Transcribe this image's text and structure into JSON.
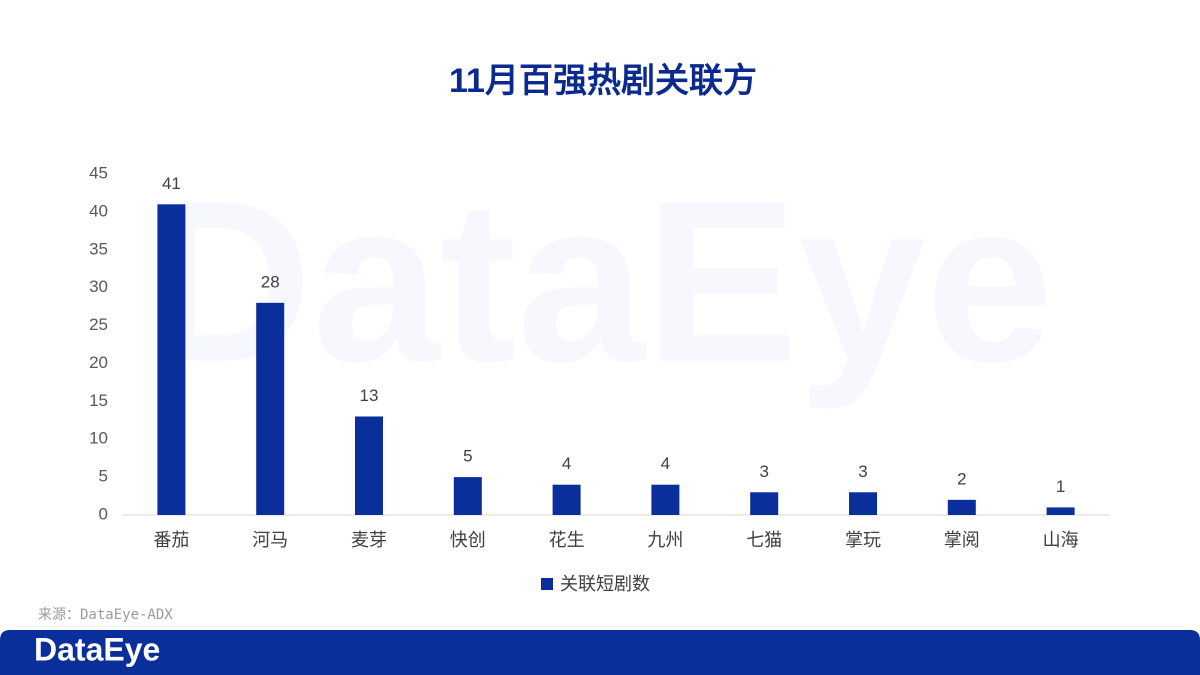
{
  "chart_data": {
    "type": "bar",
    "title": "11月百强热剧关联方",
    "categories": [
      "番茄",
      "河马",
      "麦芽",
      "快创",
      "花生",
      "九州",
      "七猫",
      "掌玩",
      "掌阅",
      "山海"
    ],
    "series": [
      {
        "name": "关联短剧数",
        "color": "#0a2f9b",
        "values": [
          41,
          28,
          13,
          5,
          4,
          4,
          3,
          3,
          2,
          1
        ]
      }
    ],
    "ylim": [
      0,
      45
    ],
    "yticks": [
      0,
      5,
      10,
      15,
      20,
      25,
      30,
      35,
      40,
      45
    ],
    "grid": false,
    "legend": "bottom"
  },
  "source": "来源：DataEye-ADX",
  "watermark": "DataEye",
  "footer_logo": "DataEye"
}
